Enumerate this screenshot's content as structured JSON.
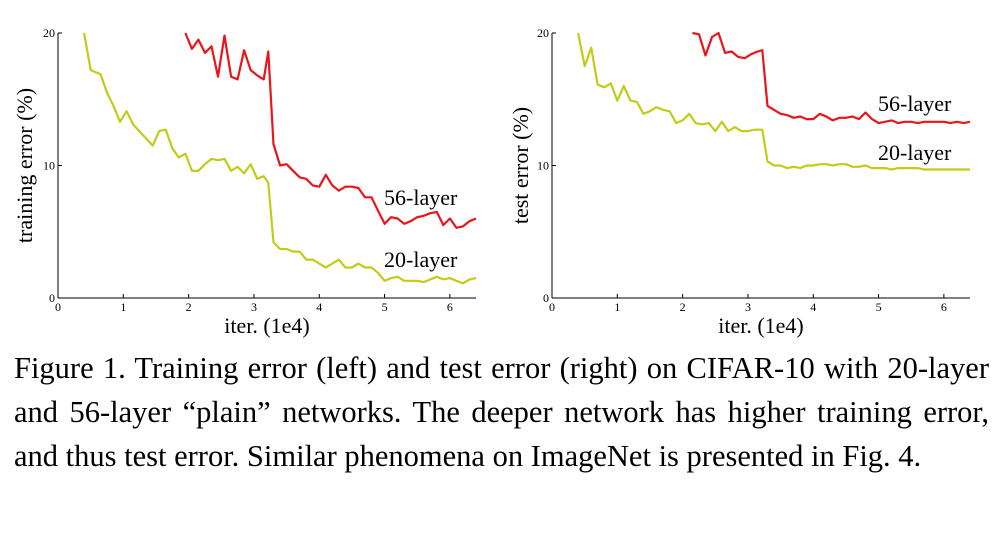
{
  "caption": "Figure 1. Training error (left) and test error (right) on CIFAR-10 with 20-layer and 56-layer “plain” networks. The deeper network has higher training error, and thus test error. Similar phenomena on ImageNet is presented in Fig. 4.",
  "colors": {
    "red": "#e8151b",
    "yellow": "#c1cc18",
    "axis": "#000000"
  },
  "chart_data": [
    {
      "type": "line",
      "title": "",
      "xlabel": "iter. (1e4)",
      "ylabel": "training error (%)",
      "xlim": [
        0,
        6.4
      ],
      "ylim": [
        0,
        20
      ],
      "xticks": [
        0,
        1,
        2,
        3,
        4,
        5,
        6
      ],
      "yticks": [
        0,
        10,
        20
      ],
      "grid": false,
      "series": [
        {
          "name": "56-layer",
          "color": "#e8151b",
          "x": [
            1.95,
            2.05,
            2.15,
            2.25,
            2.35,
            2.45,
            2.55,
            2.65,
            2.75,
            2.85,
            2.95,
            3.05,
            3.15,
            3.22,
            3.3,
            3.4,
            3.5,
            3.6,
            3.7,
            3.8,
            3.9,
            4.0,
            4.1,
            4.2,
            4.3,
            4.4,
            4.5,
            4.6,
            4.7,
            4.8,
            4.9,
            5.0,
            5.1,
            5.2,
            5.3,
            5.4,
            5.5,
            5.6,
            5.7,
            5.8,
            5.9,
            6.0,
            6.1,
            6.2,
            6.3,
            6.4
          ],
          "y": [
            20,
            18.8,
            19.5,
            18.5,
            19,
            16.7,
            19.8,
            16.7,
            16.5,
            18.7,
            17.2,
            16.8,
            16.5,
            18.6,
            11.6,
            10,
            10.1,
            9.6,
            9.1,
            9.0,
            8.5,
            8.4,
            9.3,
            8.5,
            8.1,
            8.4,
            8.4,
            8.3,
            7.6,
            7.6,
            6.6,
            5.6,
            6.1,
            6.0,
            5.6,
            5.8,
            6.1,
            6.2,
            6.4,
            6.5,
            5.5,
            6.0,
            5.3,
            5.4,
            5.8,
            6.0
          ]
        },
        {
          "name": "20-layer",
          "color": "#c1cc18",
          "x": [
            0.4,
            0.5,
            0.65,
            0.75,
            0.85,
            0.95,
            1.05,
            1.15,
            1.3,
            1.45,
            1.55,
            1.65,
            1.75,
            1.85,
            1.95,
            2.05,
            2.15,
            2.25,
            2.35,
            2.45,
            2.55,
            2.65,
            2.75,
            2.85,
            2.95,
            3.05,
            3.15,
            3.22,
            3.3,
            3.4,
            3.5,
            3.6,
            3.7,
            3.8,
            3.9,
            4.0,
            4.1,
            4.2,
            4.3,
            4.4,
            4.5,
            4.6,
            4.7,
            4.8,
            4.9,
            5.0,
            5.1,
            5.2,
            5.3,
            5.4,
            5.5,
            5.6,
            5.7,
            5.8,
            5.9,
            6.0,
            6.1,
            6.2,
            6.3,
            6.4
          ],
          "y": [
            20,
            17.2,
            16.9,
            15.5,
            14.5,
            13.3,
            14.1,
            13.1,
            12.3,
            11.5,
            12.6,
            12.7,
            11.3,
            10.6,
            10.9,
            9.6,
            9.6,
            10.1,
            10.5,
            10.4,
            10.5,
            9.6,
            9.9,
            9.4,
            10.1,
            9.0,
            9.2,
            8.7,
            4.2,
            3.7,
            3.7,
            3.5,
            3.5,
            2.9,
            2.9,
            2.6,
            2.3,
            2.6,
            2.9,
            2.3,
            2.3,
            2.6,
            2.3,
            2.3,
            1.9,
            1.3,
            1.5,
            1.6,
            1.3,
            1.3,
            1.3,
            1.2,
            1.4,
            1.6,
            1.4,
            1.5,
            1.3,
            1.1,
            1.4,
            1.5
          ]
        }
      ]
    },
    {
      "type": "line",
      "title": "",
      "xlabel": "iter. (1e4)",
      "ylabel": "test error (%)",
      "xlim": [
        0,
        6.4
      ],
      "ylim": [
        0,
        20
      ],
      "xticks": [
        0,
        1,
        2,
        3,
        4,
        5,
        6
      ],
      "yticks": [
        0,
        10,
        20
      ],
      "grid": false,
      "series": [
        {
          "name": "56-layer",
          "color": "#e8151b",
          "x": [
            2.15,
            2.25,
            2.35,
            2.45,
            2.55,
            2.65,
            2.75,
            2.85,
            2.95,
            3.05,
            3.15,
            3.22,
            3.3,
            3.4,
            3.5,
            3.6,
            3.7,
            3.8,
            3.9,
            4.0,
            4.1,
            4.2,
            4.3,
            4.4,
            4.5,
            4.6,
            4.7,
            4.8,
            4.9,
            5.0,
            5.1,
            5.2,
            5.3,
            5.4,
            5.5,
            5.6,
            5.7,
            5.8,
            5.9,
            6.0,
            6.1,
            6.2,
            6.3,
            6.4
          ],
          "y": [
            20,
            19.9,
            18.3,
            19.7,
            20,
            18.5,
            18.6,
            18.2,
            18.1,
            18.4,
            18.6,
            18.7,
            14.5,
            14.2,
            13.9,
            13.8,
            13.6,
            13.7,
            13.5,
            13.5,
            13.9,
            13.7,
            13.4,
            13.6,
            13.6,
            13.7,
            13.5,
            14.0,
            13.5,
            13.2,
            13.3,
            13.4,
            13.2,
            13.3,
            13.3,
            13.2,
            13.3,
            13.3,
            13.3,
            13.3,
            13.2,
            13.3,
            13.2,
            13.3
          ]
        },
        {
          "name": "20-layer",
          "color": "#c1cc18",
          "x": [
            0.4,
            0.5,
            0.6,
            0.7,
            0.8,
            0.9,
            1.0,
            1.1,
            1.2,
            1.3,
            1.4,
            1.5,
            1.6,
            1.7,
            1.8,
            1.9,
            2.0,
            2.1,
            2.2,
            2.3,
            2.4,
            2.5,
            2.6,
            2.7,
            2.8,
            2.9,
            3.0,
            3.1,
            3.22,
            3.3,
            3.4,
            3.5,
            3.6,
            3.7,
            3.8,
            3.9,
            4.0,
            4.1,
            4.2,
            4.3,
            4.4,
            4.5,
            4.6,
            4.7,
            4.8,
            4.9,
            5.0,
            5.1,
            5.2,
            5.3,
            5.4,
            5.5,
            5.6,
            5.7,
            5.8,
            5.9,
            6.0,
            6.1,
            6.2,
            6.3,
            6.4
          ],
          "y": [
            20,
            17.5,
            18.9,
            16.1,
            15.9,
            16.2,
            14.9,
            16.0,
            14.9,
            14.8,
            13.9,
            14.1,
            14.4,
            14.2,
            14.1,
            13.2,
            13.4,
            13.9,
            13.2,
            13.1,
            13.2,
            12.6,
            13.3,
            12.6,
            12.9,
            12.6,
            12.6,
            12.7,
            12.7,
            10.3,
            10.0,
            10.0,
            9.8,
            9.9,
            9.8,
            10.0,
            10.0,
            10.1,
            10.1,
            10.0,
            10.1,
            10.1,
            9.9,
            9.9,
            10.0,
            9.8,
            9.8,
            9.8,
            9.7,
            9.8,
            9.8,
            9.8,
            9.8,
            9.7,
            9.7,
            9.7,
            9.7,
            9.7,
            9.7,
            9.7,
            9.7
          ]
        }
      ]
    }
  ]
}
